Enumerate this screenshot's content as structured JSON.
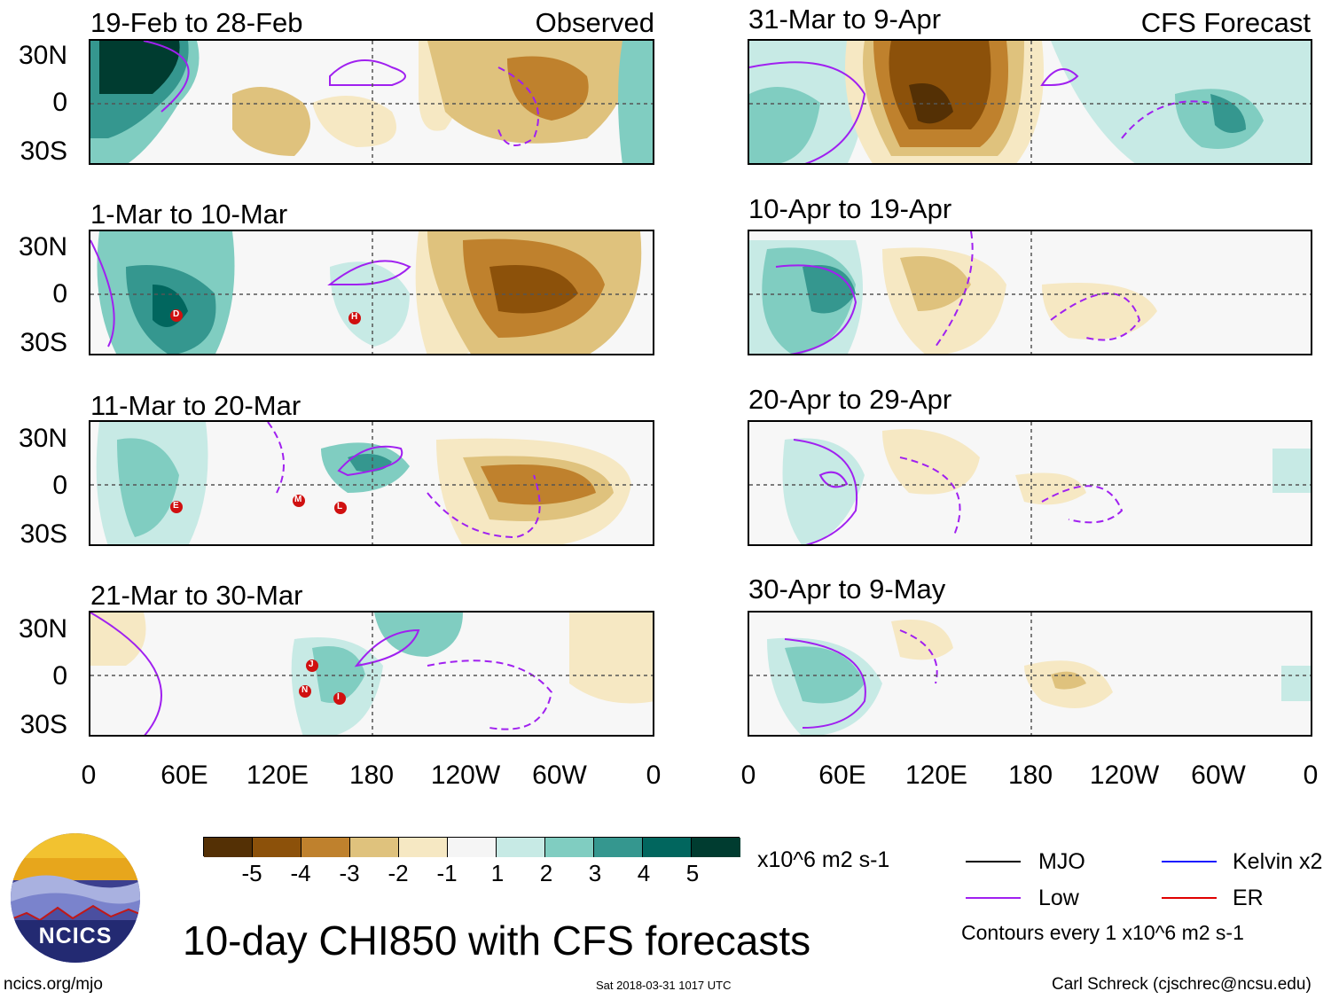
{
  "panels_left_header": "Observed",
  "panels_right_header": "CFS Forecast",
  "panels": [
    {
      "title": "19-Feb to 28-Feb"
    },
    {
      "title": "1-Mar to 10-Mar"
    },
    {
      "title": "11-Mar to 20-Mar"
    },
    {
      "title": "21-Mar to 30-Mar"
    },
    {
      "title": "31-Mar to 9-Apr"
    },
    {
      "title": "10-Apr to 19-Apr"
    },
    {
      "title": "20-Apr to 29-Apr"
    },
    {
      "title": "30-Apr to 9-May"
    }
  ],
  "lat_labels": [
    "30N",
    "0",
    "30S"
  ],
  "lon_labels": [
    "0",
    "60E",
    "120E",
    "180",
    "120W",
    "60W",
    "0"
  ],
  "colorbar": {
    "colors": [
      "#543005",
      "#8c510a",
      "#bf812d",
      "#dfc27d",
      "#f6e8c3",
      "#f5f5f5",
      "#c7eae5",
      "#80cdc1",
      "#35978f",
      "#01665e",
      "#003c30"
    ],
    "ticks": [
      "-5",
      "-4",
      "-3",
      "-2",
      "-1",
      "1",
      "2",
      "3",
      "4",
      "5"
    ],
    "units": "x10^6 m2 s-1"
  },
  "legend": {
    "items": [
      {
        "label": "MJO",
        "color": "#000000"
      },
      {
        "label": "Kelvin x2",
        "color": "#1a1aff"
      },
      {
        "label": "Low",
        "color": "#a020f0"
      },
      {
        "label": "ER",
        "color": "#e00000"
      }
    ],
    "contours_note": "Contours every 1 x10^6 m2 s-1"
  },
  "storm_markers": {
    "panel2": [
      "D",
      "H"
    ],
    "panel3": [
      "E",
      "M",
      "L"
    ],
    "panel4": [
      "J",
      "N",
      "I"
    ]
  },
  "logo_text": "NCICS",
  "main_title": "10-day CHI850 with CFS forecasts",
  "footer": {
    "url": "ncics.org/mjo",
    "timestamp": "Sat 2018-03-31 1017 UTC",
    "author": "Carl Schreck (cjschrec@ncsu.edu)"
  }
}
